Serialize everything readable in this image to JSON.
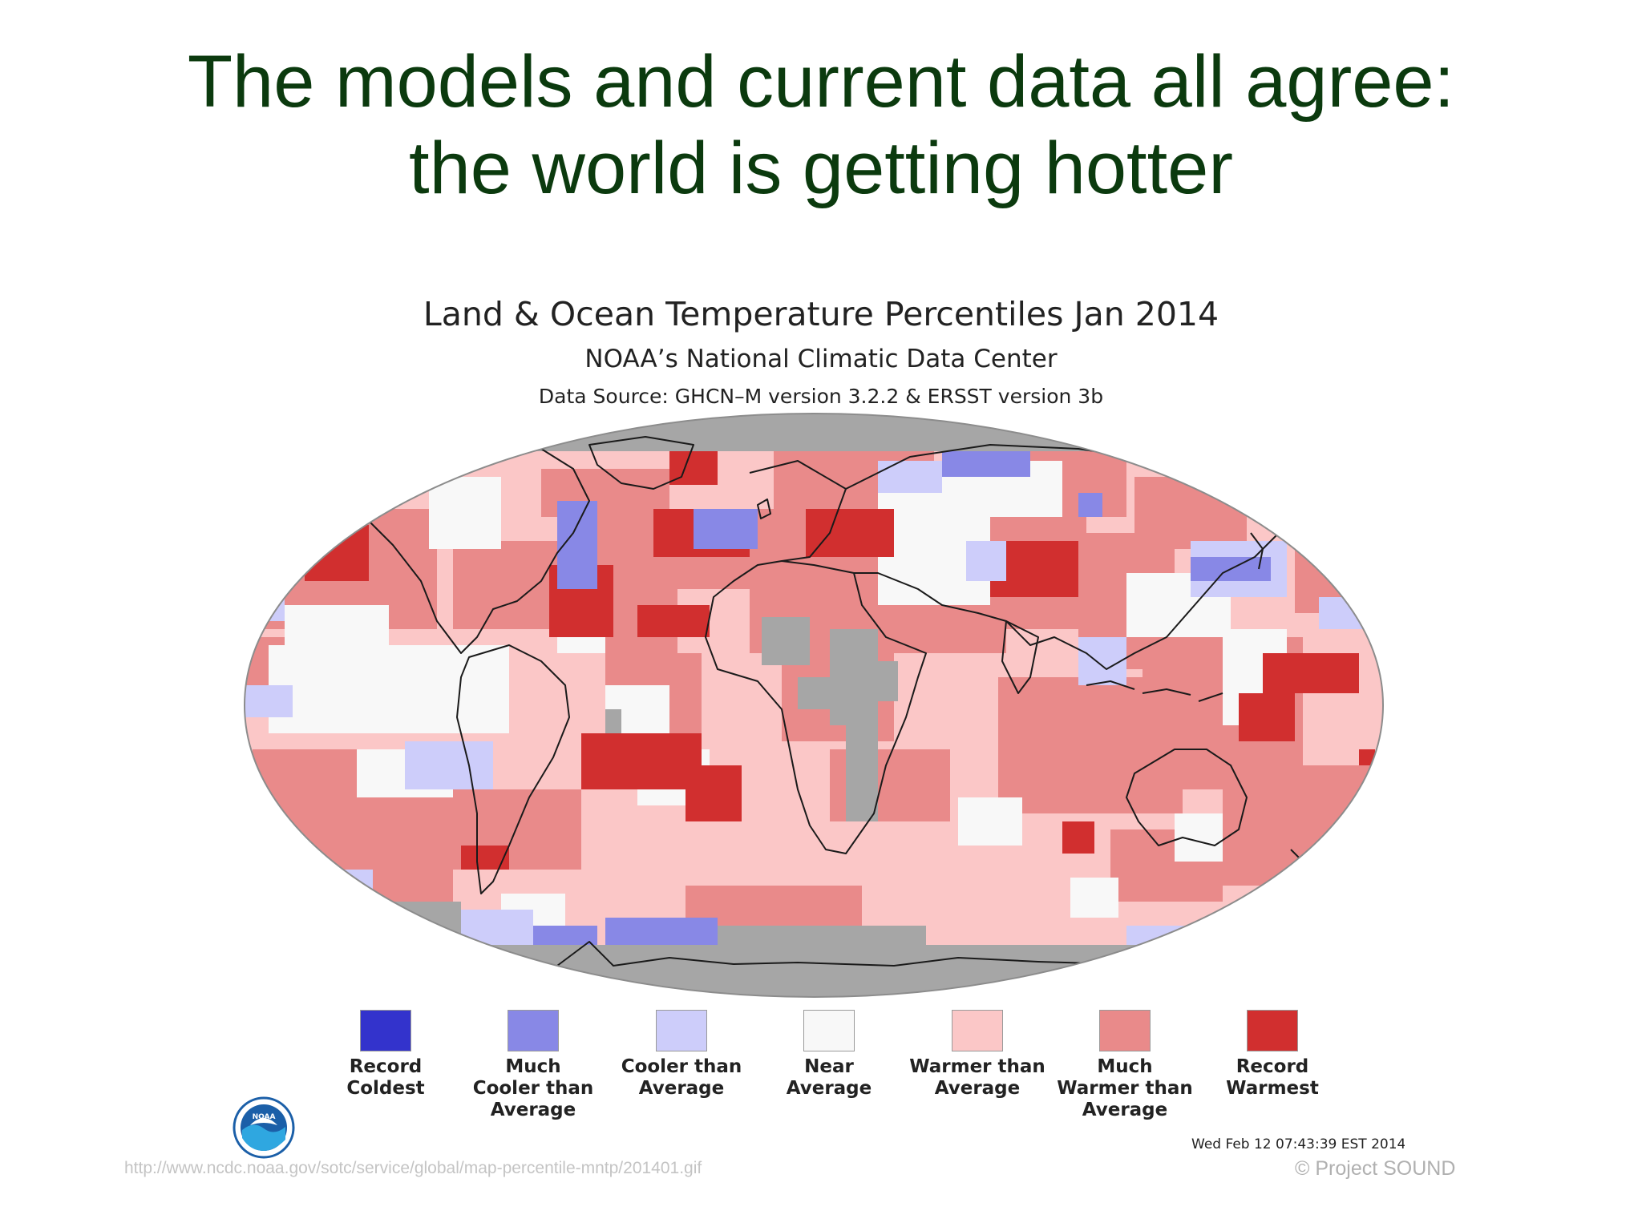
{
  "slide": {
    "title_line1": "The models and current data all agree:",
    "title_line2": "the world is getting hotter"
  },
  "map": {
    "title": "Land & Ocean Temperature Percentiles Jan 2014",
    "organization": "NOAA’s National Climatic Data Center",
    "data_source": "Data Source: GHCN–M version 3.2.2 & ERSST version 3b",
    "timestamp": "Wed Feb 12 07:43:39 EST 2014",
    "no_data_color": "#a6a6a6"
  },
  "legend": [
    {
      "label": "Record\nColdest",
      "color": "#3333cc"
    },
    {
      "label": "Much\nCooler than\nAverage",
      "color": "#8888e6"
    },
    {
      "label": "Cooler than\nAverage",
      "color": "#cdcdfa"
    },
    {
      "label": "Near\nAverage",
      "color": "#f8f8f8"
    },
    {
      "label": "Warmer than\nAverage",
      "color": "#fbc7c7"
    },
    {
      "label": "Much\nWarmer than\nAverage",
      "color": "#e98a8a"
    },
    {
      "label": "Record\nWarmest",
      "color": "#d12f2f"
    }
  ],
  "footer": {
    "source_url": "http://www.ncdc.noaa.gov/sotc/service/global/map-percentile-mntp/201401.gif",
    "copyright": "© Project  SOUND"
  },
  "logo": {
    "icon": "noaa-logo-icon",
    "text": "NOAA"
  }
}
